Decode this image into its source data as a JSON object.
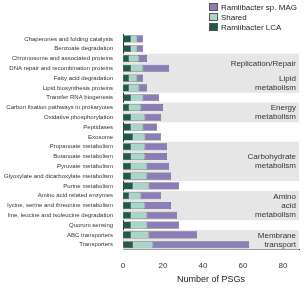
{
  "chart_data": {
    "type": "bar",
    "orientation": "horizontal",
    "stacked": true,
    "grid": false,
    "legend": "top right",
    "x_label": "Number of PSGs",
    "categories": [
      "Chaperones and folding catalysts",
      "Benzoate degradation",
      "Chromosome and associated proteins",
      "DNA repair and recombination proteins",
      "Fatty acid degradation",
      "Lipid biosynthesis proteins",
      "Transfer RNA biogenesis",
      "Carbon fixation pathways in prokaryotes",
      "Oxidative phosphorylation",
      "Peptidases",
      "Exosome",
      "Propanoate metabolism",
      "Butanoate metabolism",
      "Pyruvate metabolism",
      "Glyoxylate and dicarboxylate metabolism",
      "Purine metabolism",
      "Amino acid related enzymes",
      "lycine, serine and threonine metabolism",
      "line, leucine and isoleucine degradation",
      "Quorum sensing",
      "ABC transporters",
      "Transporters"
    ],
    "series": [
      {
        "name": "Ramlibacter LCA",
        "color": "#1f5a4c",
        "values": [
          4,
          4,
          3,
          4,
          3,
          3,
          4,
          3,
          4,
          4,
          5,
          4,
          4,
          4,
          4,
          5,
          3,
          4,
          4,
          4,
          4,
          5
        ]
      },
      {
        "name": "Shared",
        "color": "#a9d6c9",
        "values": [
          3,
          3,
          5,
          6,
          4,
          5,
          6,
          6,
          7,
          6,
          6,
          7,
          7,
          8,
          8,
          8,
          6,
          7,
          8,
          8,
          9,
          10
        ]
      },
      {
        "name": "Ramlibacter sp. MAG",
        "color": "#8b7db8",
        "values": [
          3,
          3,
          4,
          13,
          3,
          4,
          8,
          11,
          8,
          7,
          8,
          11,
          11,
          11,
          12,
          15,
          10,
          13,
          15,
          16,
          24,
          48
        ]
      }
    ],
    "xlim": [
      0,
      88
    ],
    "xticks": [
      0,
      20,
      40,
      60,
      80
    ],
    "groups": [
      {
        "label": "Replication/Repair",
        "from": "Chromosome and associated proteins",
        "to": "DNA repair and recombination proteins"
      },
      {
        "label": "Lipid metabolism",
        "from": "Fatty acid degradation",
        "to": "Lipid biosynthesis proteins"
      },
      {
        "label": "Energy metabolism",
        "from": "Carbon fixation pathways in prokaryotes",
        "to": "Oxidative phosphorylation"
      },
      {
        "label": "Carbohydrate metabolism",
        "from": "Propanoate metabolism",
        "to": "Glyoxylate and dicarboxylate metabolism"
      },
      {
        "label": "Amino acid metabolism",
        "from": "Amino acid related enzymes",
        "to": "line, leucine and isoleucine degradation"
      },
      {
        "label": "Membrane transport",
        "from": "ABC transporters",
        "to": "Transporters"
      }
    ]
  }
}
